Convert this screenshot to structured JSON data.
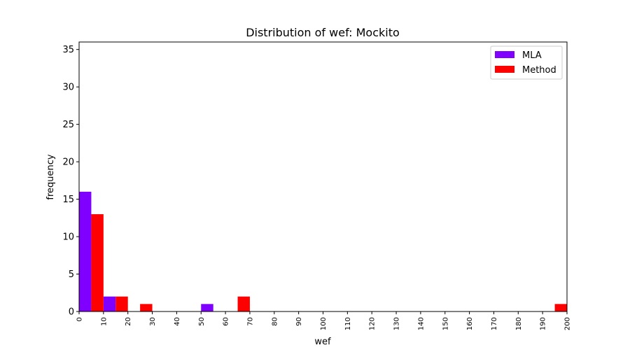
{
  "chart_data": {
    "type": "bar",
    "title": "Distribution of wef: Mockito",
    "xlabel": "wef",
    "ylabel": "frequency",
    "xlim": [
      0,
      200
    ],
    "ylim": [
      0,
      36
    ],
    "yticks": [
      0,
      5,
      10,
      15,
      20,
      25,
      30,
      35
    ],
    "xticks": [
      0,
      10,
      20,
      30,
      40,
      50,
      60,
      70,
      80,
      90,
      100,
      110,
      120,
      130,
      140,
      150,
      160,
      170,
      180,
      190,
      200
    ],
    "bin_edges": [
      0,
      10,
      20,
      30,
      40,
      50,
      60,
      70,
      80,
      90,
      100,
      110,
      120,
      130,
      140,
      150,
      160,
      170,
      180,
      190,
      200
    ],
    "grid": false,
    "legend_position": "top-right",
    "series": [
      {
        "name": "MLA",
        "color": "#7f00ff",
        "values": [
          16,
          2,
          0,
          0,
          0,
          1,
          0,
          0,
          0,
          0,
          0,
          0,
          0,
          0,
          0,
          0,
          0,
          0,
          0,
          0
        ]
      },
      {
        "name": "Method",
        "color": "#ff0000",
        "values": [
          13,
          2,
          1,
          0,
          0,
          0,
          2,
          0,
          0,
          0,
          0,
          0,
          0,
          0,
          0,
          0,
          0,
          0,
          0,
          1
        ]
      }
    ]
  }
}
